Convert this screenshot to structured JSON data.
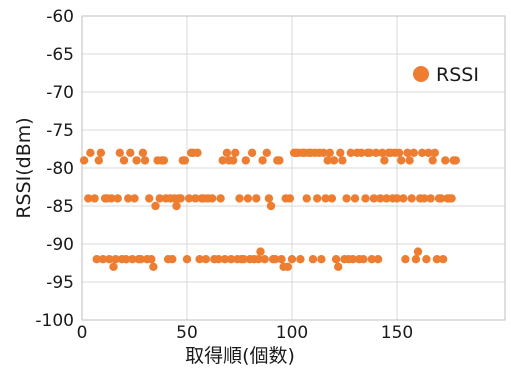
{
  "chart_data": {
    "type": "scatter",
    "title": "",
    "xlabel": "取得順(個数)",
    "ylabel": "RSSI(dBm)",
    "xlim": [
      0,
      200
    ],
    "ylim": [
      -100,
      -60
    ],
    "x_ticks": [
      0,
      50,
      100,
      150
    ],
    "y_ticks": [
      -60,
      -65,
      -70,
      -75,
      -80,
      -85,
      -90,
      -95,
      -100
    ],
    "x_tick_labels": [
      "0",
      "50",
      "100",
      "150"
    ],
    "y_tick_labels": [
      "-60",
      "-65",
      "-70",
      "-75",
      "-80",
      "-85",
      "-90",
      "-95",
      "-100"
    ],
    "grid": true,
    "legend_position": "top-right",
    "series": [
      {
        "name": "RSSI",
        "color": "#ED7D31",
        "points": [
          [
            1,
            -79
          ],
          [
            3,
            -84
          ],
          [
            4,
            -78
          ],
          [
            6,
            -84
          ],
          [
            7,
            -92
          ],
          [
            8,
            -79
          ],
          [
            9,
            -78
          ],
          [
            10,
            -92
          ],
          [
            11,
            -84
          ],
          [
            12,
            -84
          ],
          [
            13,
            -92
          ],
          [
            14,
            -84
          ],
          [
            15,
            -93
          ],
          [
            16,
            -92
          ],
          [
            17,
            -84
          ],
          [
            18,
            -78
          ],
          [
            19,
            -92
          ],
          [
            20,
            -79
          ],
          [
            21,
            -92
          ],
          [
            22,
            -84
          ],
          [
            23,
            -78
          ],
          [
            24,
            -92
          ],
          [
            25,
            -84
          ],
          [
            26,
            -79
          ],
          [
            27,
            -92
          ],
          [
            28,
            -92
          ],
          [
            29,
            -78
          ],
          [
            30,
            -79
          ],
          [
            31,
            -92
          ],
          [
            32,
            -84
          ],
          [
            33,
            -92
          ],
          [
            34,
            -93
          ],
          [
            35,
            -85
          ],
          [
            36,
            -79
          ],
          [
            37,
            -84
          ],
          [
            38,
            -79
          ],
          [
            39,
            -79
          ],
          [
            40,
            -84
          ],
          [
            41,
            -92
          ],
          [
            42,
            -84
          ],
          [
            43,
            -92
          ],
          [
            44,
            -84
          ],
          [
            45,
            -85
          ],
          [
            46,
            -84
          ],
          [
            47,
            -84
          ],
          [
            48,
            -79
          ],
          [
            49,
            -79
          ],
          [
            50,
            -92
          ],
          [
            51,
            -84
          ],
          [
            52,
            -78
          ],
          [
            53,
            -78
          ],
          [
            54,
            -84
          ],
          [
            55,
            -78
          ],
          [
            56,
            -92
          ],
          [
            57,
            -84
          ],
          [
            58,
            -84
          ],
          [
            59,
            -92
          ],
          [
            60,
            -84
          ],
          [
            62,
            -84
          ],
          [
            63,
            -92
          ],
          [
            65,
            -92
          ],
          [
            66,
            -84
          ],
          [
            67,
            -79
          ],
          [
            68,
            -92
          ],
          [
            69,
            -78
          ],
          [
            70,
            -79
          ],
          [
            71,
            -92
          ],
          [
            72,
            -79
          ],
          [
            73,
            -78
          ],
          [
            74,
            -92
          ],
          [
            75,
            -84
          ],
          [
            76,
            -92
          ],
          [
            77,
            -92
          ],
          [
            78,
            -79
          ],
          [
            79,
            -84
          ],
          [
            80,
            -92
          ],
          [
            81,
            -78
          ],
          [
            82,
            -92
          ],
          [
            83,
            -84
          ],
          [
            84,
            -92
          ],
          [
            85,
            -91
          ],
          [
            86,
            -79
          ],
          [
            87,
            -92
          ],
          [
            88,
            -78
          ],
          [
            89,
            -84
          ],
          [
            90,
            -85
          ],
          [
            91,
            -92
          ],
          [
            92,
            -92
          ],
          [
            93,
            -79
          ],
          [
            94,
            -79
          ],
          [
            95,
            -92
          ],
          [
            96,
            -93
          ],
          [
            97,
            -84
          ],
          [
            98,
            -93
          ],
          [
            99,
            -84
          ],
          [
            100,
            -92
          ],
          [
            101,
            -78
          ],
          [
            102,
            -78
          ],
          [
            103,
            -78
          ],
          [
            104,
            -92
          ],
          [
            105,
            -78
          ],
          [
            106,
            -78
          ],
          [
            107,
            -84
          ],
          [
            108,
            -78
          ],
          [
            109,
            -78
          ],
          [
            110,
            -92
          ],
          [
            111,
            -78
          ],
          [
            112,
            -84
          ],
          [
            113,
            -78
          ],
          [
            114,
            -92
          ],
          [
            115,
            -78
          ],
          [
            116,
            -84
          ],
          [
            117,
            -79
          ],
          [
            118,
            -78
          ],
          [
            119,
            -84
          ],
          [
            120,
            -79
          ],
          [
            121,
            -92
          ],
          [
            122,
            -93
          ],
          [
            123,
            -78
          ],
          [
            124,
            -79
          ],
          [
            125,
            -92
          ],
          [
            126,
            -84
          ],
          [
            127,
            -92
          ],
          [
            128,
            -78
          ],
          [
            129,
            -92
          ],
          [
            130,
            -84
          ],
          [
            131,
            -78
          ],
          [
            132,
            -92
          ],
          [
            133,
            -78
          ],
          [
            134,
            -92
          ],
          [
            135,
            -84
          ],
          [
            136,
            -78
          ],
          [
            137,
            -78
          ],
          [
            138,
            -92
          ],
          [
            139,
            -84
          ],
          [
            140,
            -78
          ],
          [
            141,
            -92
          ],
          [
            142,
            -84
          ],
          [
            143,
            -78
          ],
          [
            144,
            -79
          ],
          [
            145,
            -84
          ],
          [
            146,
            -78
          ],
          [
            147,
            -78
          ],
          [
            148,
            -84
          ],
          [
            149,
            -78
          ],
          [
            150,
            -84
          ],
          [
            151,
            -78
          ],
          [
            152,
            -79
          ],
          [
            153,
            -84
          ],
          [
            154,
            -92
          ],
          [
            155,
            -78
          ],
          [
            156,
            -79
          ],
          [
            157,
            -84
          ],
          [
            158,
            -78
          ],
          [
            159,
            -92
          ],
          [
            160,
            -91
          ],
          [
            161,
            -84
          ],
          [
            162,
            -78
          ],
          [
            163,
            -84
          ],
          [
            164,
            -92
          ],
          [
            165,
            -78
          ],
          [
            166,
            -84
          ],
          [
            167,
            -79
          ],
          [
            168,
            -78
          ],
          [
            169,
            -92
          ],
          [
            170,
            -84
          ],
          [
            171,
            -84
          ],
          [
            172,
            -92
          ],
          [
            173,
            -79
          ],
          [
            174,
            -84
          ],
          [
            175,
            -84
          ],
          [
            176,
            -84
          ],
          [
            177,
            -79
          ],
          [
            178,
            -79
          ]
        ]
      }
    ]
  }
}
